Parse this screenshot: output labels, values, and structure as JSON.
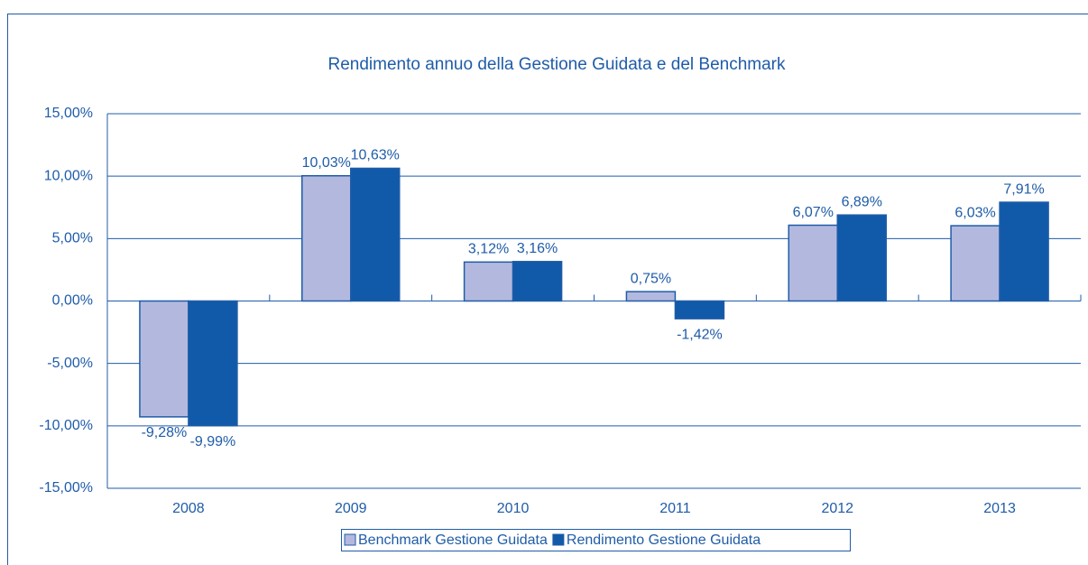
{
  "chart_data": {
    "type": "bar",
    "title": "Rendimento annuo della Gestione Guidata e del Benchmark",
    "categories": [
      "2008",
      "2009",
      "2010",
      "2011",
      "2012",
      "2013"
    ],
    "series": [
      {
        "name": "Benchmark Gestione Guidata",
        "color": "#b3b9de",
        "values": [
          -9.28,
          10.03,
          3.12,
          0.75,
          6.07,
          6.03
        ],
        "value_labels": [
          "-9,28%",
          "10,03%",
          "3,12%",
          "0,75%",
          "6,07%",
          "6,03%"
        ]
      },
      {
        "name": "Rendimento Gestione Guidata",
        "color": "#115aa9",
        "values": [
          -9.99,
          10.63,
          3.16,
          -1.42,
          6.89,
          7.91
        ],
        "value_labels": [
          "-9,99%",
          "10,63%",
          "3,16%",
          "-1,42%",
          "6,89%",
          "7,91%"
        ]
      }
    ],
    "ylim": [
      -15,
      15
    ],
    "yticks": [
      {
        "value": -15,
        "label": "-15,00%"
      },
      {
        "value": -10,
        "label": "-10,00%"
      },
      {
        "value": -5,
        "label": "-5,00%"
      },
      {
        "value": 0,
        "label": "0,00%"
      },
      {
        "value": 5,
        "label": "5,00%"
      },
      {
        "value": 10,
        "label": "10,00%"
      },
      {
        "value": 15,
        "label": "15,00%"
      }
    ],
    "grid": true,
    "legend": "bottom"
  }
}
